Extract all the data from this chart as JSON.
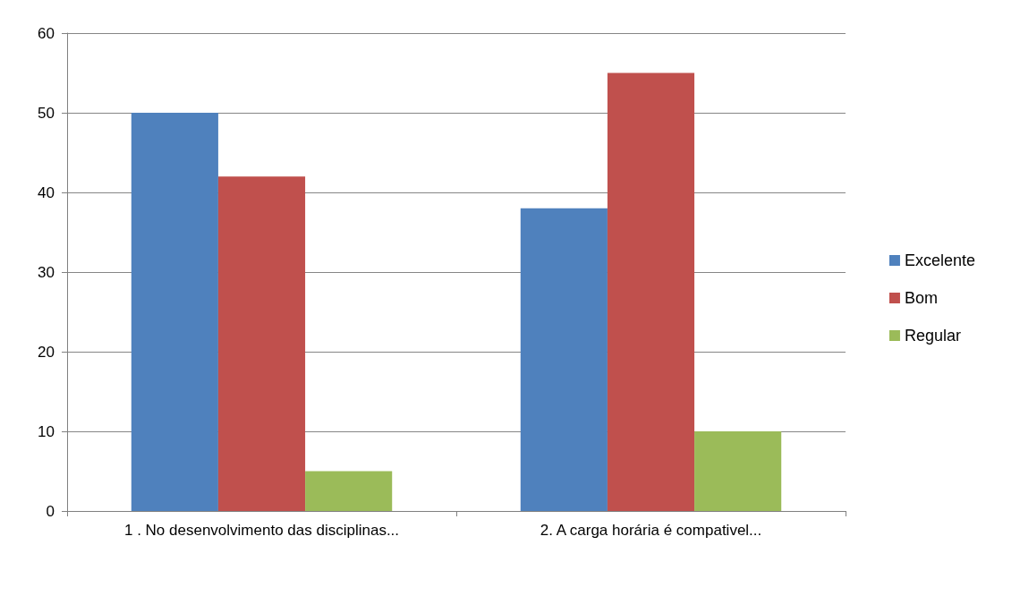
{
  "chart_data": {
    "type": "bar",
    "categories": [
      "1 . No desenvolvimento das disciplinas...",
      "2. A carga horária é compativel..."
    ],
    "series": [
      {
        "name": "Excelente",
        "color": "#4f81bd",
        "values": [
          50,
          38
        ]
      },
      {
        "name": "Bom",
        "color": "#c0504d",
        "values": [
          42,
          55
        ]
      },
      {
        "name": "Regular",
        "color": "#9bbb59",
        "values": [
          5,
          10
        ]
      }
    ],
    "ylim": [
      0,
      60
    ],
    "yticks": [
      0,
      10,
      20,
      30,
      40,
      50,
      60
    ],
    "grid": "y",
    "legend": "right"
  }
}
